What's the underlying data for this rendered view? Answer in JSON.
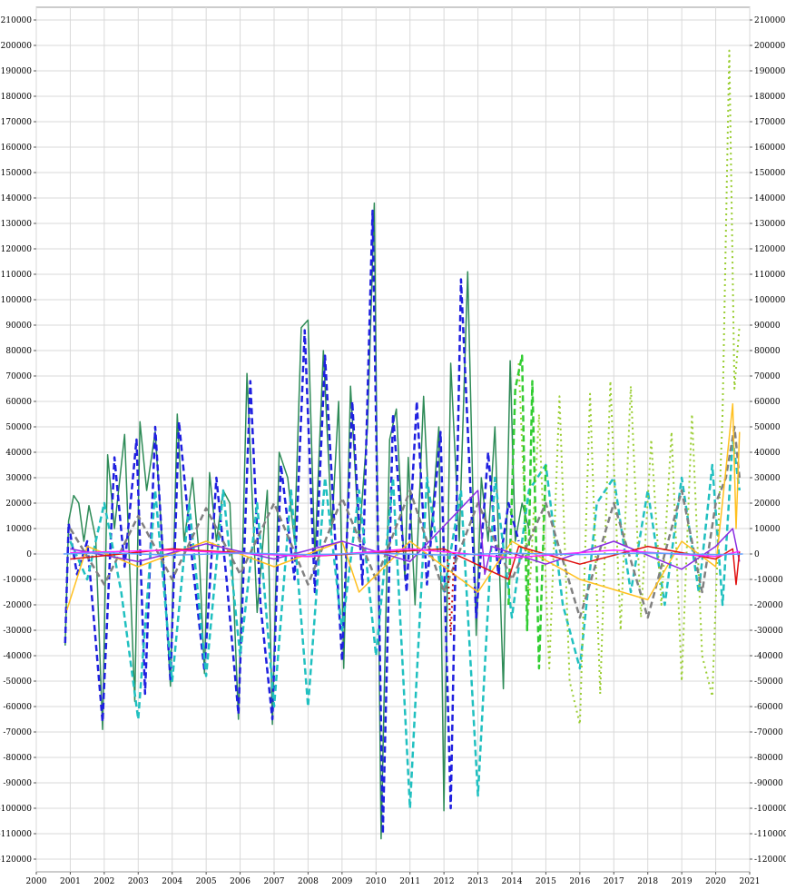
{
  "chart_data": {
    "type": "line",
    "title": "",
    "xlabel": "",
    "ylabel": "",
    "xlim": [
      2000,
      2021
    ],
    "ylim": [
      -125000,
      215000
    ],
    "x_ticks": [
      "2000",
      "2001",
      "2002",
      "2003",
      "2004",
      "2005",
      "2006",
      "2007",
      "2008",
      "2009",
      "2010",
      "2011",
      "2012",
      "2013",
      "2014",
      "2015",
      "2016",
      "2017",
      "2018",
      "2019",
      "2020",
      "2021"
    ],
    "y_ticks": [
      210000,
      200000,
      190000,
      180000,
      170000,
      160000,
      150000,
      140000,
      130000,
      120000,
      110000,
      100000,
      90000,
      80000,
      70000,
      60000,
      50000,
      40000,
      30000,
      20000,
      10000,
      0,
      -10000,
      -20000,
      -30000,
      -40000,
      -50000,
      -60000,
      -70000,
      -80000,
      -90000,
      -100000,
      -110000,
      -120000
    ],
    "grid": true,
    "legend": "none",
    "series": [
      {
        "color": "#2e8b57",
        "style": "solid",
        "x": [
          2000.85,
          2000.95,
          2001.1,
          2001.25,
          2001.4,
          2001.55,
          2001.75,
          2001.95,
          2002.1,
          2002.3,
          2002.6,
          2002.9,
          2003.05,
          2003.25,
          2003.5,
          2003.75,
          2003.95,
          2004.15,
          2004.35,
          2004.6,
          2004.8,
          2004.95,
          2005.1,
          2005.3,
          2005.5,
          2005.7,
          2005.95,
          2006.2,
          2006.5,
          2006.8,
          2006.95,
          2007.15,
          2007.4,
          2007.6,
          2007.8,
          2008.0,
          2008.2,
          2008.45,
          2008.7,
          2008.9,
          2009.05,
          2009.25,
          2009.5,
          2009.75,
          2009.95,
          2010.15,
          2010.4,
          2010.6,
          2010.85,
          2010.95,
          2011.15,
          2011.4,
          2011.6,
          2011.85,
          2012.0,
          2012.2,
          2012.45,
          2012.7,
          2012.95,
          2013.1,
          2013.3,
          2013.5,
          2013.75,
          2013.95,
          2014.1,
          2014.3,
          2014.5
        ],
        "y": [
          -36000,
          13000,
          23000,
          20000,
          5000,
          19000,
          6000,
          -69000,
          39000,
          10000,
          47000,
          -58000,
          52000,
          25000,
          48000,
          -5000,
          -52000,
          55000,
          5000,
          30000,
          -2000,
          -47000,
          32000,
          5000,
          25000,
          20000,
          -65000,
          71000,
          -23000,
          25000,
          -67000,
          40000,
          30000,
          5000,
          89000,
          92000,
          -2000,
          80000,
          10000,
          60000,
          -45000,
          66000,
          5000,
          50000,
          138000,
          -112000,
          45000,
          57000,
          -10000,
          38000,
          -20000,
          62000,
          5000,
          50000,
          -101000,
          75000,
          5000,
          111000,
          -32000,
          30000,
          5000,
          50000,
          -53000,
          76000,
          5000,
          20000,
          10000
        ]
      },
      {
        "color": "#1f1fe0",
        "style": "dashed",
        "x": [
          2000.85,
          2000.95,
          2001.2,
          2001.5,
          2001.95,
          2002.3,
          2002.6,
          2002.95,
          2003.2,
          2003.5,
          2003.95,
          2004.2,
          2004.6,
          2004.95,
          2005.3,
          2005.6,
          2005.95,
          2006.3,
          2006.6,
          2006.95,
          2007.2,
          2007.6,
          2007.9,
          2008.2,
          2008.5,
          2008.8,
          2009.0,
          2009.3,
          2009.6,
          2009.9,
          2010.2,
          2010.5,
          2010.9,
          2011.2,
          2011.5,
          2011.9,
          2012.2,
          2012.5,
          2012.95,
          2013.3,
          2013.6,
          2013.9,
          2014.2
        ],
        "y": [
          -35000,
          12000,
          -8000,
          5000,
          -66000,
          38000,
          -5000,
          45000,
          -55000,
          50000,
          -50000,
          52000,
          -4000,
          -46000,
          30000,
          -10000,
          -63000,
          68000,
          -20000,
          -65000,
          35000,
          -10000,
          88000,
          -15000,
          78000,
          5000,
          -42000,
          60000,
          -12000,
          135000,
          -110000,
          55000,
          -15000,
          60000,
          -12000,
          48000,
          -100000,
          108000,
          -25000,
          40000,
          -8000,
          20000,
          5000
        ]
      },
      {
        "color": "#20c0c0",
        "style": "dashed",
        "x": [
          2001.0,
          2001.5,
          2002.0,
          2002.5,
          2003.0,
          2003.5,
          2004.0,
          2004.5,
          2005.0,
          2005.5,
          2006.0,
          2006.5,
          2007.0,
          2007.5,
          2008.0,
          2008.5,
          2009.0,
          2009.5,
          2010.0,
          2010.5,
          2011.0,
          2011.5,
          2012.0,
          2012.5,
          2013.0,
          2013.5,
          2014.0,
          2014.5,
          2015.0,
          2015.5,
          2016.0,
          2016.5,
          2017.0,
          2017.5,
          2018.0,
          2018.5,
          2019.0,
          2019.5,
          2019.9,
          2020.2,
          2020.5,
          2020.7
        ],
        "y": [
          5000,
          -10000,
          20000,
          -15000,
          -65000,
          25000,
          -50000,
          20000,
          -48000,
          25000,
          -40000,
          20000,
          -60000,
          25000,
          -60000,
          30000,
          -30000,
          25000,
          -40000,
          30000,
          -100000,
          30000,
          -15000,
          25000,
          -95000,
          30000,
          -25000,
          25000,
          35000,
          -20000,
          -45000,
          20000,
          30000,
          -15000,
          25000,
          -20000,
          30000,
          -15000,
          35000,
          -20000,
          45000,
          25000
        ]
      },
      {
        "color": "#9acd32",
        "style": "dotted",
        "x": [
          2014.2,
          2014.5,
          2014.8,
          2015.1,
          2015.4,
          2015.7,
          2016.0,
          2016.3,
          2016.6,
          2016.9,
          2017.2,
          2017.5,
          2017.8,
          2018.1,
          2018.4,
          2018.7,
          2019.0,
          2019.3,
          2019.6,
          2019.9,
          2020.2,
          2020.4,
          2020.55,
          2020.7
        ],
        "y": [
          75000,
          -20000,
          55000,
          -45000,
          62000,
          -50000,
          -67000,
          63000,
          -55000,
          68000,
          -30000,
          66000,
          -25000,
          45000,
          -20000,
          48000,
          -50000,
          55000,
          -40000,
          -56000,
          55000,
          198000,
          65000,
          90000
        ]
      },
      {
        "color": "#32cd32",
        "style": "dashed",
        "x": [
          2013.9,
          2014.1,
          2014.3,
          2014.45,
          2014.6,
          2014.8,
          2015.0
        ],
        "y": [
          -20000,
          65000,
          78000,
          -30000,
          68000,
          -45000,
          35000
        ]
      },
      {
        "color": "#808080",
        "style": "dashed",
        "x": [
          2001.0,
          2002.0,
          2003.0,
          2004.0,
          2005.0,
          2006.0,
          2007.0,
          2008.0,
          2009.0,
          2010.0,
          2011.0,
          2012.0,
          2013.0,
          2014.0,
          2015.0,
          2016.0,
          2017.0,
          2018.0,
          2019.0,
          2019.6,
          2020.0,
          2020.3,
          2020.55,
          2020.7
        ],
        "y": [
          10000,
          -12000,
          15000,
          -10000,
          18000,
          -8000,
          20000,
          -12000,
          22000,
          -10000,
          25000,
          -15000,
          20000,
          -10000,
          20000,
          -25000,
          20000,
          -25000,
          25000,
          -15000,
          20000,
          30000,
          50000,
          30000
        ]
      },
      {
        "color": "#ffc020",
        "style": "solid",
        "x": [
          2000.9,
          2001.5,
          2003.0,
          2005.0,
          2007.0,
          2009.0,
          2009.5,
          2011.0,
          2013.0,
          2014.0,
          2016.0,
          2018.0,
          2019.0,
          2020.0,
          2020.5,
          2020.6,
          2020.7
        ],
        "y": [
          -22000,
          3000,
          -5000,
          5000,
          -5000,
          5000,
          -15000,
          5000,
          -15000,
          5000,
          -10000,
          -18000,
          5000,
          -5000,
          59000,
          10000,
          48000
        ]
      },
      {
        "color": "#8a2be2",
        "style": "solid",
        "x": [
          2001.0,
          2003.0,
          2005.0,
          2007.0,
          2009.0,
          2011.0,
          2013.0,
          2013.2,
          2013.4,
          2015.0,
          2017.0,
          2019.0,
          2020.0,
          2020.5,
          2020.7
        ],
        "y": [
          2000,
          -3000,
          4000,
          -2000,
          5000,
          -3000,
          25000,
          -8000,
          3000,
          -4000,
          5000,
          -6000,
          3000,
          10000,
          -3000
        ]
      },
      {
        "color": "#e01010",
        "style": "solid",
        "x": [
          2001.0,
          2004.0,
          2008.0,
          2012.0,
          2013.9,
          2014.2,
          2016.0,
          2018.0,
          2020.0,
          2020.5,
          2020.6,
          2020.7
        ],
        "y": [
          -2000,
          2000,
          -1000,
          2000,
          -10000,
          3000,
          -4000,
          3000,
          -2000,
          2000,
          -12000,
          1000
        ]
      },
      {
        "color": "#c01010",
        "style": "dotted",
        "x": [
          2012.1,
          2012.2,
          2012.3
        ],
        "y": [
          0,
          -32000,
          0
        ]
      },
      {
        "color": "#ff20ff",
        "style": "solid",
        "x": [
          2001.0,
          2004.0,
          2008.0,
          2011.0,
          2014.0,
          2017.0,
          2020.0,
          2020.7
        ],
        "y": [
          500,
          1500,
          -1000,
          2000,
          -1500,
          1500,
          -1000,
          1000
        ]
      },
      {
        "color": "#60a0ff",
        "style": "solid",
        "x": [
          2000.8,
          2002.0,
          2004.0,
          2006.0,
          2008.0,
          2010.0,
          2012.0,
          2014.0,
          2016.0,
          2018.0,
          2020.0,
          2020.8
        ],
        "y": [
          0,
          500,
          -500,
          400,
          -300,
          300,
          -400,
          300,
          -200,
          400,
          -300,
          0
        ]
      }
    ]
  }
}
